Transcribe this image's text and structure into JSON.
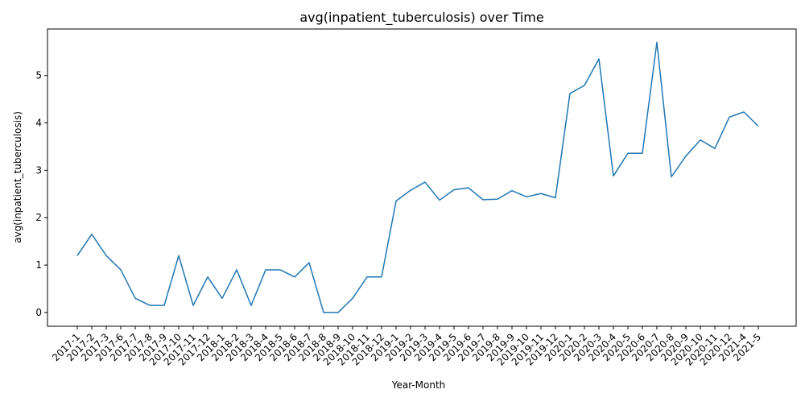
{
  "chart_data": {
    "type": "line",
    "title": "avg(inpatient_tuberculosis) over Time",
    "xlabel": "Year-Month",
    "ylabel": "avg(inpatient_tuberculosis)",
    "ylim": [
      -0.29,
      5.98
    ],
    "yticks": [
      0,
      1,
      2,
      3,
      4,
      5
    ],
    "grid": false,
    "categories": [
      "2017-1",
      "2017-2",
      "2017-3",
      "2017-6",
      "2017-7",
      "2017-8",
      "2017-9",
      "2017-10",
      "2017-11",
      "2017-12",
      "2018-1",
      "2018-2",
      "2018-3",
      "2018-4",
      "2018-5",
      "2018-6",
      "2018-7",
      "2018-8",
      "2018-9",
      "2018-10",
      "2018-11",
      "2018-12",
      "2019-1",
      "2019-2",
      "2019-3",
      "2019-4",
      "2019-5",
      "2019-6",
      "2019-7",
      "2019-8",
      "2019-9",
      "2019-10",
      "2019-11",
      "2019-12",
      "2020-1",
      "2020-2",
      "2020-3",
      "2020-4",
      "2020-5",
      "2020-6",
      "2020-7",
      "2020-8",
      "2020-9",
      "2020-10",
      "2020-11",
      "2020-12",
      "2021-4",
      "2021-5"
    ],
    "series": [
      {
        "color": "#1f77b4",
        "values": [
          1.2,
          1.65,
          1.2,
          0.9,
          0.3,
          0.15,
          0.15,
          1.2,
          0.15,
          0.75,
          0.3,
          0.9,
          0.15,
          0.9,
          0.9,
          0.75,
          1.05,
          0.0,
          0.0,
          0.3,
          0.75,
          0.75,
          2.35,
          2.58,
          2.75,
          2.37,
          2.59,
          2.63,
          2.38,
          2.39,
          2.57,
          2.44,
          2.51,
          2.42,
          4.62,
          4.79,
          5.35,
          2.88,
          3.36,
          3.36,
          5.7,
          2.86,
          3.3,
          3.64,
          3.46,
          4.12,
          4.23,
          3.93
        ]
      }
    ]
  }
}
